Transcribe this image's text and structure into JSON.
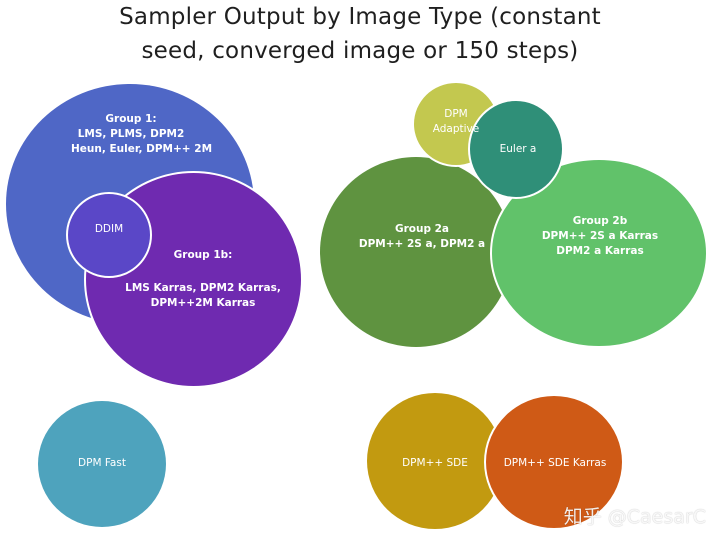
{
  "title": {
    "line1": "Sampler Output by Image Type (constant",
    "line2": "seed, converged image or 150 steps)"
  },
  "colors": {
    "group1": "#4f67c6",
    "group1b": "#6f2ab0",
    "ddim": "#5a47c7",
    "group2a": "#5f9340",
    "group2b": "#61c26a",
    "dpm_adaptive": "#c3c84f",
    "euler_a": "#2f8f78",
    "dpm_fast": "#4ea3bd",
    "dpm_sde": "#c29a10",
    "dpm_sde_karras": "#cf5a16"
  },
  "groups": {
    "group1": {
      "title": "Group 1:",
      "line1": "LMS, PLMS, DPM2",
      "line2": "Heun, Euler, DPM++ 2M"
    },
    "group1b": {
      "title": "Group 1b:",
      "line1": "LMS Karras, DPM2 Karras,",
      "line2": "DPM++2M Karras"
    },
    "ddim": {
      "label": "DDIM"
    },
    "group2a": {
      "title": "Group 2a",
      "line1": "DPM++ 2S a, DPM2 a"
    },
    "group2b": {
      "title": "Group 2b",
      "line1": "DPM++ 2S a Karras",
      "line2": "DPM2 a Karras"
    },
    "dpm_adaptive": {
      "line1": "DPM",
      "line2": "Adaptive"
    },
    "euler_a": {
      "label": "Euler a"
    },
    "dpm_fast": {
      "label": "DPM Fast"
    },
    "dpm_sde": {
      "label": "DPM++ SDE"
    },
    "dpm_sde_karras": {
      "label": "DPM++ SDE Karras"
    }
  },
  "watermark": "知乎 @CaesarC"
}
